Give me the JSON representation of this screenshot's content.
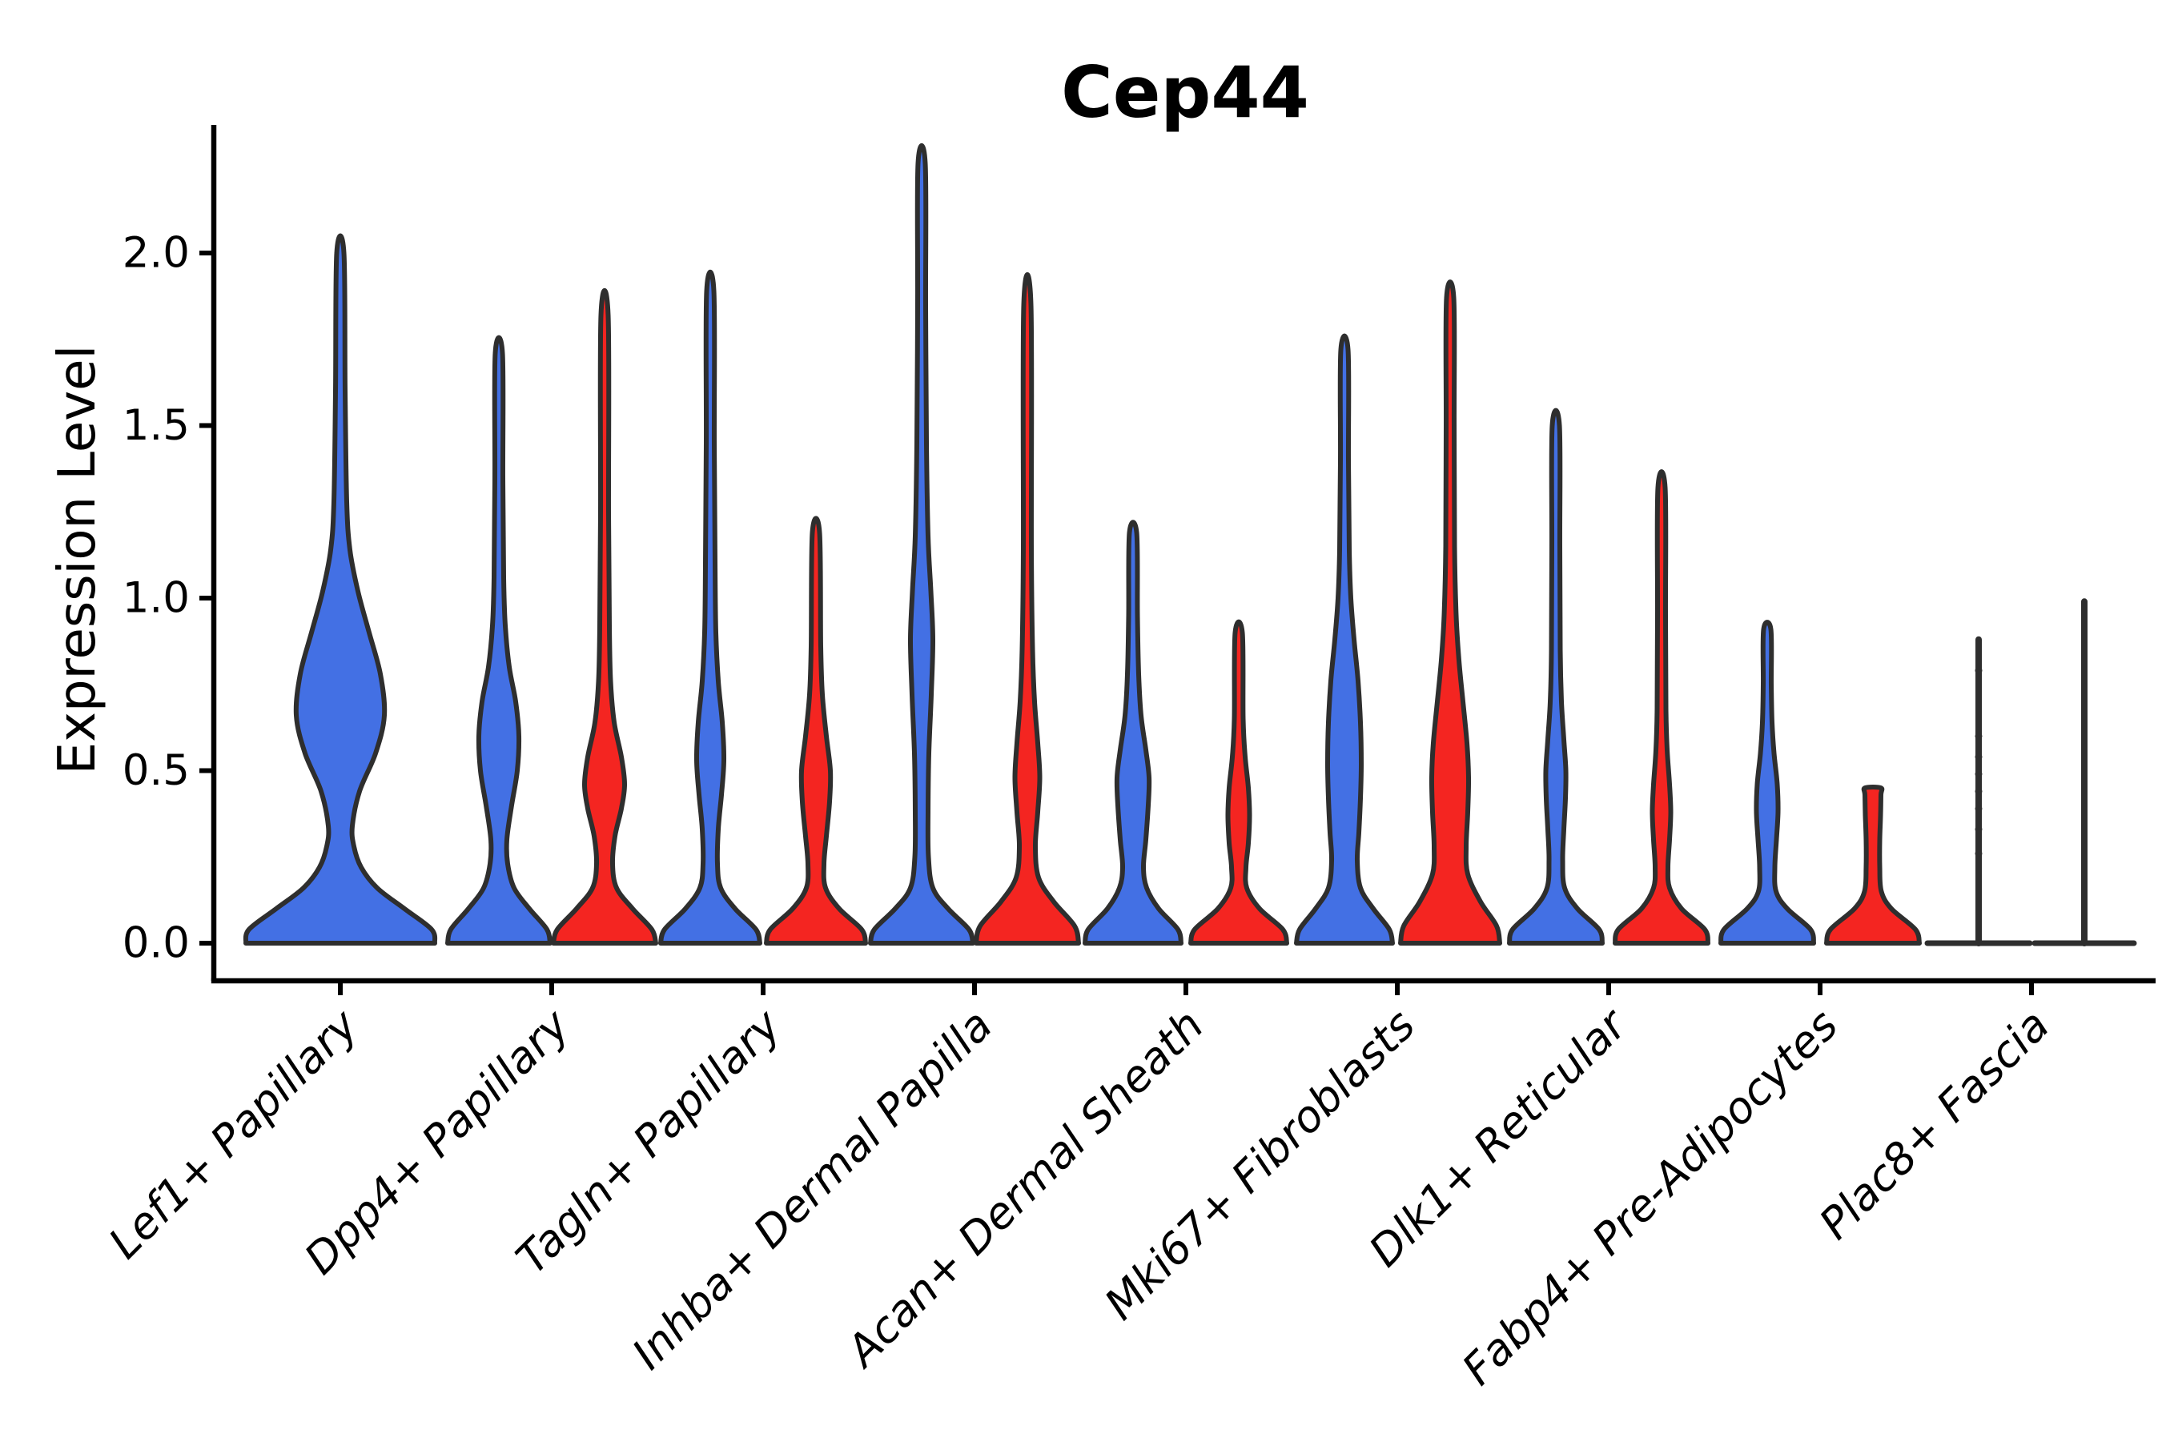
{
  "title": "Cep44",
  "y_axis": {
    "label": "Expression Level",
    "tick_labels": [
      "0.0",
      "0.5",
      "1.0",
      "1.5",
      "2.0"
    ]
  },
  "colors": {
    "blue": "#4370E4",
    "red": "#F42521",
    "outline": "#2E2E2E",
    "axis": "#000000",
    "background": "#FFFFFF"
  },
  "chart_data": {
    "type": "violin",
    "title": "Cep44",
    "xlabel": "",
    "ylabel": "Expression Level",
    "ylim": [
      -0.11,
      2.37
    ],
    "yticks": [
      0.0,
      0.5,
      1.0,
      1.5,
      2.0
    ],
    "grid": false,
    "legend": "none",
    "x_tick_rotation_deg": 45,
    "categories": [
      "Lef1+ Papillary",
      "Dpp4+ Papillary",
      "Tagln+ Papillary",
      "Inhba+ Dermal Papilla",
      "Acan+ Dermal Sheath",
      "Mki67+ Fibroblasts",
      "Dlk1+ Reticular",
      "Fabp4+ Pre-Adipocytes",
      "Plac8+ Fascia"
    ],
    "series": [
      {
        "name": "blue",
        "color": "#4370E4",
        "violins": [
          {
            "category": "Lef1+ Papillary",
            "present": true,
            "offset": 0,
            "max": 2.0,
            "mode": 0.66,
            "profile": [
              [
                0,
                118
              ],
              [
                0.04,
                114
              ],
              [
                0.1,
                80
              ],
              [
                0.16,
                46
              ],
              [
                0.22,
                26
              ],
              [
                0.28,
                17
              ],
              [
                0.34,
                15
              ],
              [
                0.44,
                24
              ],
              [
                0.55,
                44
              ],
              [
                0.66,
                55
              ],
              [
                0.78,
                50
              ],
              [
                0.9,
                36
              ],
              [
                1.02,
                22
              ],
              [
                1.14,
                12
              ],
              [
                1.28,
                8
              ],
              [
                1.6,
                6
              ],
              [
                2.0,
                4.5
              ]
            ]
          },
          {
            "category": "Dpp4+ Papillary",
            "present": true,
            "max": 1.71,
            "mode": 0.6,
            "profile": [
              [
                0,
                64
              ],
              [
                0.04,
                60
              ],
              [
                0.1,
                38
              ],
              [
                0.16,
                19
              ],
              [
                0.23,
                11
              ],
              [
                0.3,
                10
              ],
              [
                0.4,
                16
              ],
              [
                0.5,
                23
              ],
              [
                0.6,
                25
              ],
              [
                0.7,
                21
              ],
              [
                0.8,
                13
              ],
              [
                0.92,
                8
              ],
              [
                1.06,
                6
              ],
              [
                1.35,
                5
              ],
              [
                1.71,
                4.5
              ]
            ]
          },
          {
            "category": "Tagln+ Papillary",
            "present": true,
            "max": 1.89,
            "mode": 0.53,
            "profile": [
              [
                0,
                62
              ],
              [
                0.04,
                57
              ],
              [
                0.1,
                31
              ],
              [
                0.16,
                13
              ],
              [
                0.23,
                9
              ],
              [
                0.33,
                10
              ],
              [
                0.43,
                14
              ],
              [
                0.53,
                17
              ],
              [
                0.64,
                15
              ],
              [
                0.76,
                10
              ],
              [
                0.9,
                7
              ],
              [
                1.1,
                6
              ],
              [
                1.45,
                5
              ],
              [
                1.89,
                4.5
              ]
            ]
          },
          {
            "category": "Inhba+ Dermal Papilla",
            "present": true,
            "max": 2.26,
            "mode": 0.88,
            "profile": [
              [
                0,
                64
              ],
              [
                0.04,
                59
              ],
              [
                0.1,
                33
              ],
              [
                0.16,
                14
              ],
              [
                0.25,
                8.5
              ],
              [
                0.38,
                8
              ],
              [
                0.55,
                9
              ],
              [
                0.72,
                12
              ],
              [
                0.88,
                14
              ],
              [
                1.02,
                11.5
              ],
              [
                1.18,
                8
              ],
              [
                1.45,
                6
              ],
              [
                1.85,
                5
              ],
              [
                2.26,
                4.5
              ]
            ]
          },
          {
            "category": "Acan+ Dermal Sheath",
            "present": true,
            "max": 1.19,
            "mode": 0.48,
            "profile": [
              [
                0,
                60
              ],
              [
                0.04,
                56
              ],
              [
                0.1,
                32
              ],
              [
                0.16,
                17
              ],
              [
                0.22,
                13
              ],
              [
                0.3,
                16
              ],
              [
                0.4,
                19
              ],
              [
                0.48,
                20
              ],
              [
                0.56,
                16
              ],
              [
                0.66,
                10
              ],
              [
                0.78,
                7
              ],
              [
                0.95,
                5.5
              ],
              [
                1.19,
                4.5
              ]
            ]
          },
          {
            "category": "Mki67+ Fibroblasts",
            "present": true,
            "max": 1.72,
            "mode": 0.52,
            "profile": [
              [
                0,
                60
              ],
              [
                0.04,
                56
              ],
              [
                0.1,
                36
              ],
              [
                0.16,
                20
              ],
              [
                0.24,
                16
              ],
              [
                0.32,
                18
              ],
              [
                0.42,
                20
              ],
              [
                0.52,
                21
              ],
              [
                0.64,
                20
              ],
              [
                0.76,
                17
              ],
              [
                0.88,
                12
              ],
              [
                1.0,
                8
              ],
              [
                1.14,
                6
              ],
              [
                1.4,
                5
              ],
              [
                1.72,
                4.5
              ]
            ]
          },
          {
            "category": "Dlk1+ Reticular",
            "present": true,
            "max": 1.5,
            "mode": 0.5,
            "profile": [
              [
                0,
                58
              ],
              [
                0.04,
                54
              ],
              [
                0.1,
                27
              ],
              [
                0.16,
                11
              ],
              [
                0.24,
                8.5
              ],
              [
                0.33,
                10
              ],
              [
                0.42,
                12
              ],
              [
                0.5,
                12.5
              ],
              [
                0.59,
                10
              ],
              [
                0.7,
                7
              ],
              [
                0.85,
                5.5
              ],
              [
                1.15,
                5
              ],
              [
                1.5,
                4.5
              ]
            ]
          },
          {
            "category": "Fabp4+ Pre-Adipocytes",
            "present": true,
            "max": 0.91,
            "mode": 0.38,
            "profile": [
              [
                0,
                58
              ],
              [
                0.04,
                54
              ],
              [
                0.1,
                25
              ],
              [
                0.15,
                11
              ],
              [
                0.22,
                9.5
              ],
              [
                0.3,
                11.5
              ],
              [
                0.38,
                13.5
              ],
              [
                0.46,
                12.5
              ],
              [
                0.55,
                8.5
              ],
              [
                0.64,
                6
              ],
              [
                0.75,
                5
              ],
              [
                0.91,
                4.5
              ]
            ]
          },
          {
            "category": "Plac8+ Fascia",
            "present": true,
            "style": "stick",
            "max": 0.88,
            "base_halfwidth": 64,
            "points": [
              0.26,
              0.33,
              0.39,
              0.44,
              0.49,
              0.54,
              0.6,
              0.79
            ],
            "profile": [
              [
                0,
                64
              ],
              [
                0.88,
                4
              ]
            ]
          }
        ]
      },
      {
        "name": "red",
        "color": "#F42521",
        "violins": [
          {
            "category": "Lef1+ Papillary",
            "present": false,
            "max": null,
            "profile": []
          },
          {
            "category": "Dpp4+ Papillary",
            "present": true,
            "max": 1.82,
            "mode": 0.46,
            "profile": [
              [
                0,
                64
              ],
              [
                0.04,
                59
              ],
              [
                0.1,
                35
              ],
              [
                0.16,
                15
              ],
              [
                0.23,
                10
              ],
              [
                0.31,
                13
              ],
              [
                0.39,
                21
              ],
              [
                0.46,
                25
              ],
              [
                0.54,
                21
              ],
              [
                0.64,
                12
              ],
              [
                0.76,
                7.5
              ],
              [
                0.92,
                6
              ],
              [
                1.25,
                5
              ],
              [
                1.82,
                4.5
              ]
            ]
          },
          {
            "category": "Tagln+ Papillary",
            "present": true,
            "max": 1.19,
            "mode": 0.5,
            "profile": [
              [
                0,
                62
              ],
              [
                0.04,
                57
              ],
              [
                0.1,
                29
              ],
              [
                0.16,
                12
              ],
              [
                0.23,
                10
              ],
              [
                0.31,
                13
              ],
              [
                0.41,
                17
              ],
              [
                0.5,
                18
              ],
              [
                0.6,
                13
              ],
              [
                0.72,
                8
              ],
              [
                0.86,
                6
              ],
              [
                1.19,
                4.5
              ]
            ]
          },
          {
            "category": "Inhba+ Dermal Papilla",
            "present": true,
            "max": 1.85,
            "mode": 0.48,
            "profile": [
              [
                0,
                64
              ],
              [
                0.05,
                59
              ],
              [
                0.12,
                33
              ],
              [
                0.19,
                14
              ],
              [
                0.28,
                10
              ],
              [
                0.38,
                13
              ],
              [
                0.48,
                15.5
              ],
              [
                0.58,
                13
              ],
              [
                0.7,
                9
              ],
              [
                0.85,
                6.5
              ],
              [
                1.15,
                5
              ],
              [
                1.85,
                4.5
              ]
            ]
          },
          {
            "category": "Acan+ Dermal Sheath",
            "present": true,
            "max": 0.9,
            "mode": 0.37,
            "profile": [
              [
                0,
                60
              ],
              [
                0.04,
                55
              ],
              [
                0.1,
                26
              ],
              [
                0.16,
                10
              ],
              [
                0.22,
                9
              ],
              [
                0.29,
                12
              ],
              [
                0.37,
                13.5
              ],
              [
                0.45,
                12
              ],
              [
                0.54,
                8
              ],
              [
                0.65,
                5.5
              ],
              [
                0.9,
                4.5
              ]
            ]
          },
          {
            "category": "Mki67+ Fibroblasts",
            "present": true,
            "max": 1.87,
            "mode": 0.48,
            "profile": [
              [
                0,
                62
              ],
              [
                0.05,
                58
              ],
              [
                0.12,
                38
              ],
              [
                0.2,
                22
              ],
              [
                0.28,
                20
              ],
              [
                0.38,
                22
              ],
              [
                0.48,
                23
              ],
              [
                0.58,
                21
              ],
              [
                0.7,
                16
              ],
              [
                0.82,
                11
              ],
              [
                0.95,
                7.5
              ],
              [
                1.15,
                5.5
              ],
              [
                1.5,
                5
              ],
              [
                1.87,
                4.5
              ]
            ]
          },
          {
            "category": "Dlk1+ Reticular",
            "present": true,
            "max": 1.32,
            "mode": 0.42,
            "profile": [
              [
                0,
                58
              ],
              [
                0.04,
                54
              ],
              [
                0.1,
                25
              ],
              [
                0.16,
                10
              ],
              [
                0.22,
                8
              ],
              [
                0.3,
                10
              ],
              [
                0.38,
                11.5
              ],
              [
                0.46,
                10
              ],
              [
                0.56,
                7
              ],
              [
                0.68,
                5.5
              ],
              [
                0.95,
                5
              ],
              [
                1.32,
                4.5
              ]
            ]
          },
          {
            "category": "Fabp4+ Pre-Adipocytes",
            "present": true,
            "flat_top": true,
            "max": 0.45,
            "mode": 0.45,
            "profile": [
              [
                0,
                58
              ],
              [
                0.04,
                53
              ],
              [
                0.1,
                23
              ],
              [
                0.15,
                10.5
              ],
              [
                0.22,
                8.5
              ],
              [
                0.3,
                8.5
              ],
              [
                0.37,
                9.5
              ],
              [
                0.43,
                10
              ],
              [
                0.45,
                9.8
              ]
            ]
          },
          {
            "category": "Plac8+ Fascia",
            "present": true,
            "style": "stick",
            "max": 0.99,
            "base_halfwidth": 62,
            "profile": [
              [
                0,
                62
              ],
              [
                0.99,
                4
              ]
            ]
          }
        ]
      }
    ]
  }
}
